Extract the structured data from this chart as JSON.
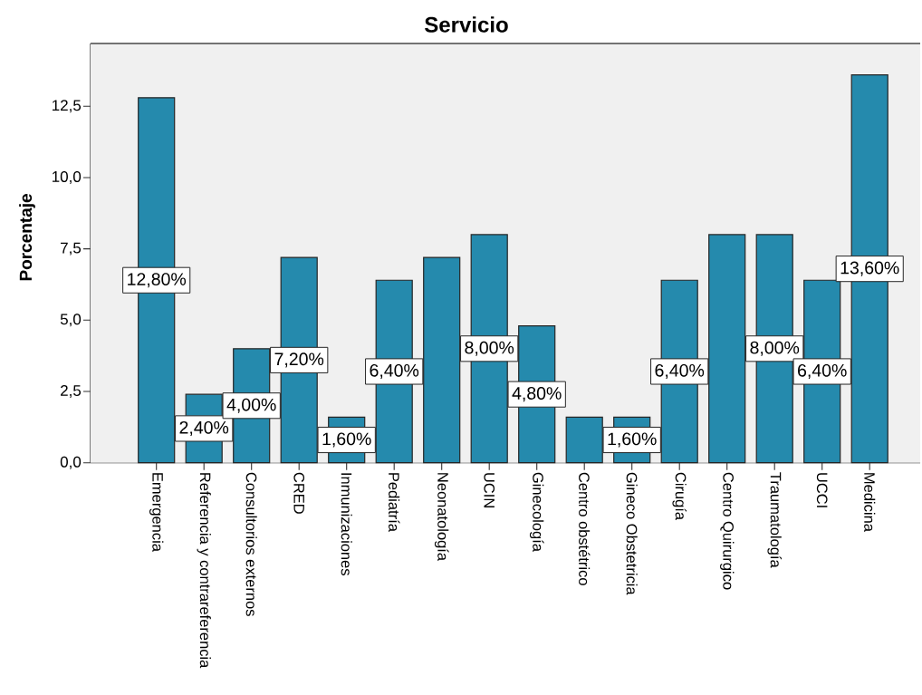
{
  "chart_data": {
    "type": "bar",
    "title": "Servicio",
    "ylabel": "Porcentaje",
    "categories": [
      "Emergencia",
      "Referencia y contrareferencia",
      "Consultorios externos",
      "CRED",
      "Inmunizaciones",
      "Pediatría",
      "Neonatología",
      "UCIN",
      "Ginecología",
      "Centro obstétrico",
      "Gineco Obstetricia",
      "Cirugía",
      "Centro Quirurgico",
      "Traumatología",
      "UCCI",
      "Medicina"
    ],
    "values": [
      12.8,
      2.4,
      4.0,
      7.2,
      1.6,
      6.4,
      7.2,
      8.0,
      4.8,
      1.6,
      1.6,
      6.4,
      8.0,
      8.0,
      6.4,
      13.6
    ],
    "value_labels": [
      "12,80%",
      "2,40%",
      "4,00%",
      "7,20%",
      "1,60%",
      "6,40%",
      null,
      "8,00%",
      "4,80%",
      null,
      "1,60%",
      "6,40%",
      null,
      "8,00%",
      "6,40%",
      "13,60%"
    ],
    "color": "#258aad",
    "ylim": [
      0,
      14.7
    ],
    "yticks": [
      {
        "value": 0,
        "label": "0,0"
      },
      {
        "value": 2.5,
        "label": "2,5"
      },
      {
        "value": 5,
        "label": "5,0"
      },
      {
        "value": 7.5,
        "label": "7,5"
      },
      {
        "value": 10,
        "label": "10,0"
      },
      {
        "value": 12.5,
        "label": "12,5"
      }
    ]
  }
}
